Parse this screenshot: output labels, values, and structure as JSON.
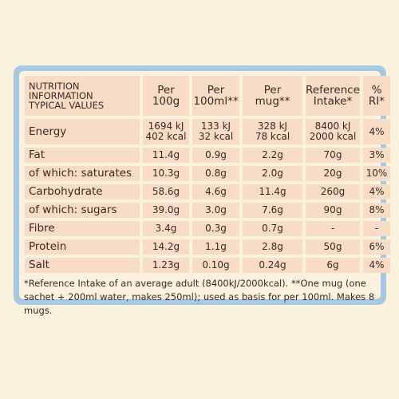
{
  "header": {
    "label_lines": [
      "NUTRITION",
      "INFORMATION",
      "TYPICAL VALUES"
    ],
    "columns": [
      [
        "Per",
        "100g"
      ],
      [
        "Per",
        "100ml**"
      ],
      [
        "Per",
        "mug**"
      ],
      [
        "Reference",
        "Intake*"
      ],
      [
        "%",
        "RI*"
      ]
    ]
  },
  "rows": [
    {
      "label": "Energy",
      "per100g": [
        "1694 kJ",
        "402 kcal"
      ],
      "per100ml": [
        "133 kJ",
        "32 kcal"
      ],
      "permug": [
        "328 kJ",
        "78 kcal"
      ],
      "ri": [
        "8400 kJ",
        "2000 kcal"
      ],
      "pct": "4%"
    },
    {
      "label": "Fat",
      "per100g": [
        "11.4g"
      ],
      "per100ml": [
        "0.9g"
      ],
      "permug": [
        "2.2g"
      ],
      "ri": [
        "70g"
      ],
      "pct": "3%"
    },
    {
      "label": "of which: saturates",
      "per100g": [
        "10.3g"
      ],
      "per100ml": [
        "0.8g"
      ],
      "permug": [
        "2.0g"
      ],
      "ri": [
        "20g"
      ],
      "pct": "10%"
    },
    {
      "label": "Carbohydrate",
      "per100g": [
        "58.6g"
      ],
      "per100ml": [
        "4.6g"
      ],
      "permug": [
        "11.4g"
      ],
      "ri": [
        "260g"
      ],
      "pct": "4%"
    },
    {
      "label": "of which: sugars",
      "per100g": [
        "39.0g"
      ],
      "per100ml": [
        "3.0g"
      ],
      "permug": [
        "7.6g"
      ],
      "ri": [
        "90g"
      ],
      "pct": "8%"
    },
    {
      "label": "Fibre",
      "per100g": [
        "3.4g"
      ],
      "per100ml": [
        "0.3g"
      ],
      "permug": [
        "0.7g"
      ],
      "ri": [
        "-"
      ],
      "pct": "-"
    },
    {
      "label": "Protein",
      "per100g": [
        "14.2g"
      ],
      "per100ml": [
        "1.1g"
      ],
      "permug": [
        "2.8g"
      ],
      "ri": [
        "50g"
      ],
      "pct": "6%"
    },
    {
      "label": "Salt",
      "per100g": [
        "1.23g"
      ],
      "per100ml": [
        "0.10g"
      ],
      "permug": [
        "0.24g"
      ],
      "ri": [
        "6g"
      ],
      "pct": "4%"
    }
  ],
  "footnote": "*Reference Intake of an average adult (8400kJ/2000kcal). **One mug (one sachet + 200ml water, makes 250ml); used as basis for per 100ml. Makes 8 mugs."
}
